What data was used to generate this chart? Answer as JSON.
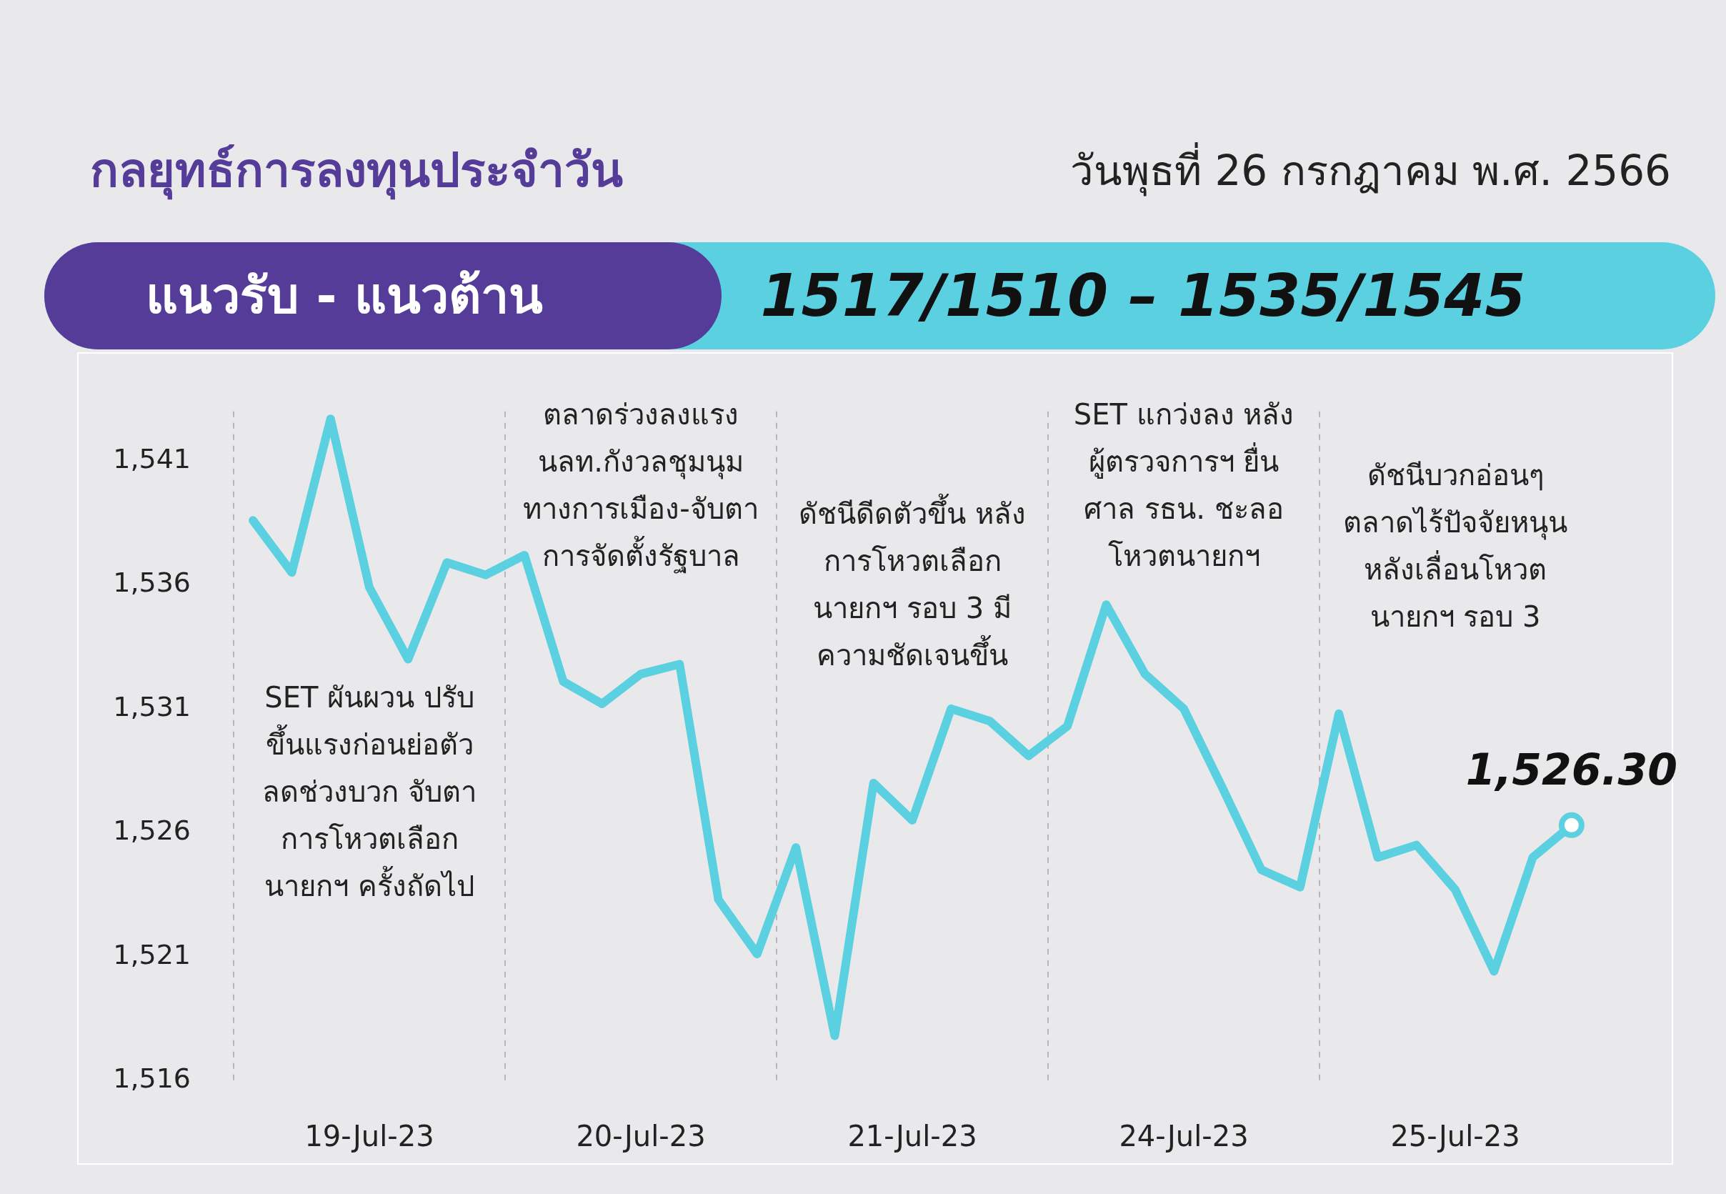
{
  "chart_data": {
    "type": "line",
    "title": "กลยุทธ์การลงทุนประจำวัน",
    "subtitle": "วันพุธที่ 26 กรกฎาคม พ.ศ. 2566",
    "annotations": [
      "แนวรับ - แนวต้าน",
      "1517/1510 – 1535/1545",
      "SET ผันผวน ปรับ\nขึ้นแรงก่อนย่อตัว\nลดช่วงบวก จับตา\nการโหวตเลือก\nนายกฯ ครั้งถัดไป",
      "ตลาดร่วงลงแรง\nนลท.กังวลชุมนุม\nทางการเมือง-จับตา\nการจัดตั้งรัฐบาล",
      "ดัชนีดีดตัวขึ้น หลัง\nการโหวตเลือก\nนายกฯ รอบ 3 มี\nความชัดเจนขึ้น",
      "SET แกว่งลง หลัง\nผู้ตรวจการฯ ยื่น\nศาล รธน. ชะลอ\nโหวตนายกฯ",
      "ดัชนีบวกอ่อนๆ\nตลาดไร้ปัจจัยหนุน\nหลังเลื่อนโหวต\nนายกฯ รอบ 3"
    ],
    "categories": [
      null,
      null,
      null,
      "19-Jul-23",
      null,
      null,
      null,
      null,
      null,
      null,
      "20-Jul-23",
      null,
      null,
      null,
      null,
      null,
      null,
      "21-Jul-23",
      null,
      null,
      null,
      null,
      null,
      null,
      "24-Jul-23",
      null,
      null,
      null,
      null,
      null,
      null,
      "25-Jul-23",
      null,
      null,
      null
    ],
    "series": [
      {
        "color": "#5bd0e0",
        "values": [
          1538.6,
          1536.5,
          1542.7,
          1535.9,
          1533.0,
          1536.9,
          1536.4,
          1537.2,
          1532.1,
          1531.2,
          1532.4,
          1532.8,
          1523.3,
          1521.1,
          1525.4,
          1517.8,
          1528.0,
          1526.5,
          1531.0,
          1530.5,
          1529.1,
          1530.3,
          1535.2,
          1532.4,
          1531.0,
          1527.8,
          1524.5,
          1523.8,
          1530.8,
          1525.0,
          1525.5,
          1523.7,
          1520.4,
          1525.0,
          1526.3
        ],
        "value_labels": [
          null,
          null,
          null,
          null,
          null,
          null,
          null,
          null,
          null,
          null,
          null,
          null,
          null,
          null,
          null,
          null,
          null,
          null,
          null,
          null,
          null,
          null,
          null,
          null,
          null,
          null,
          null,
          null,
          null,
          null,
          null,
          null,
          null,
          null,
          "1,526.30"
        ]
      }
    ],
    "ylim": [
      1516,
      1543
    ],
    "yticks": [
      {
        "value": 1516,
        "label": "1,516"
      },
      {
        "value": 1521,
        "label": "1,521"
      },
      {
        "value": 1526,
        "label": "1,526"
      },
      {
        "value": 1531,
        "label": "1,531"
      },
      {
        "value": 1536,
        "label": "1,536"
      },
      {
        "value": 1541,
        "label": "1,541"
      }
    ],
    "grid": "x",
    "legend": false
  }
}
